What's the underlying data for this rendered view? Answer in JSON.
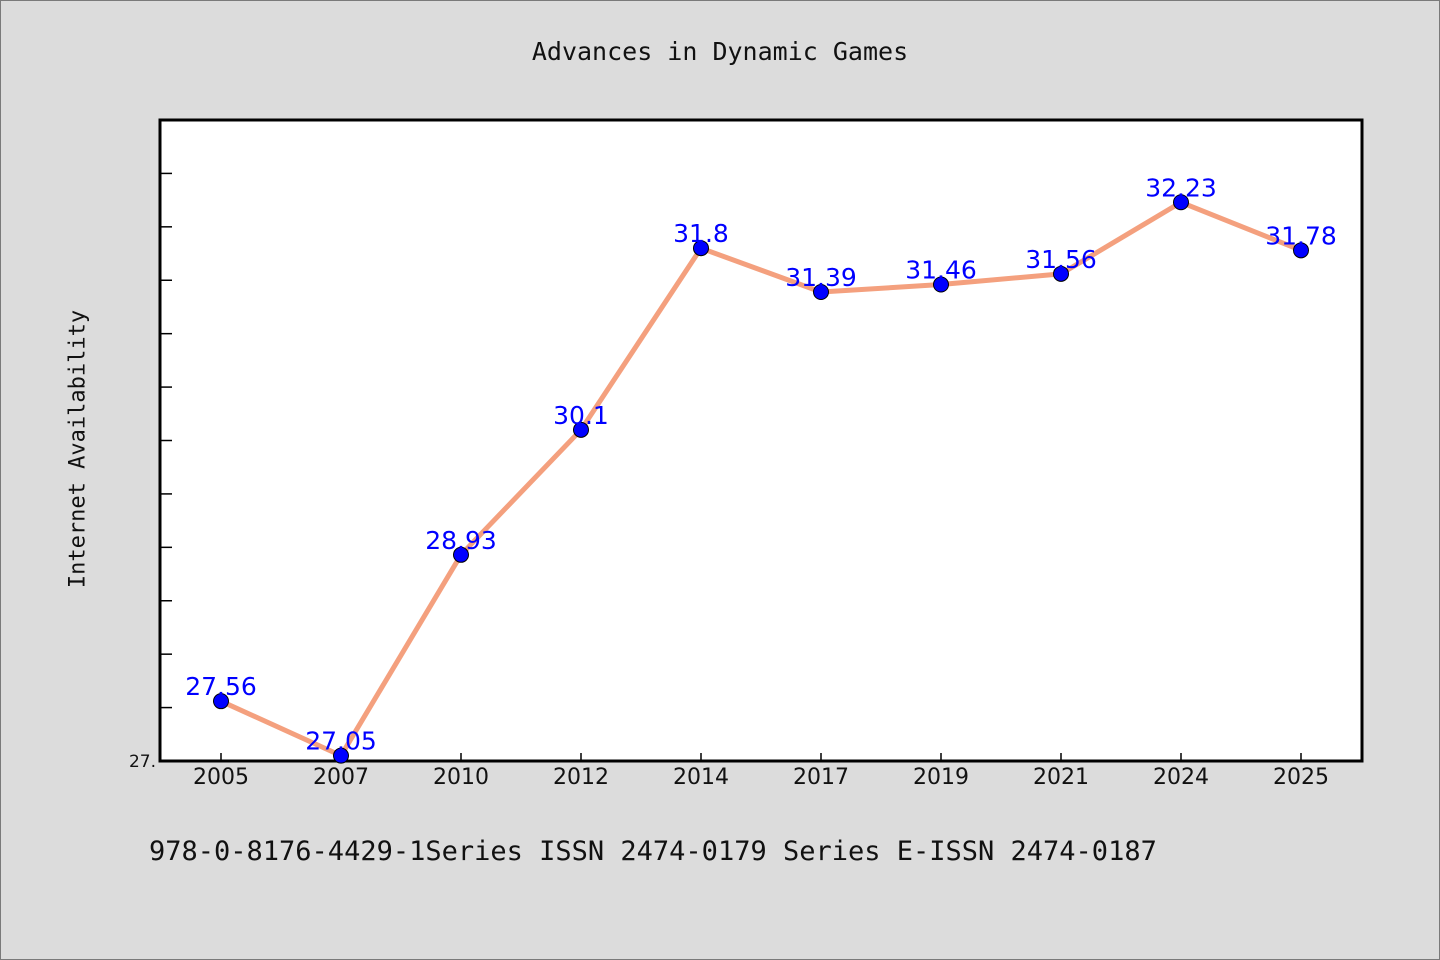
{
  "colors": {
    "line": "#f4a07e",
    "marker": "#0000ff",
    "data_label": "#0000ff",
    "plot_background": "#ffffff",
    "figure_background": "#dcdcdc"
  },
  "footer": "978-0-8176-4429-1Series ISSN 2474-0179 Series E-ISSN 2474-0187",
  "chart_data": {
    "type": "line",
    "title": "Advances in Dynamic Games",
    "xlabel": "",
    "ylabel": "Internet Availability",
    "categories": [
      "2005",
      "2007",
      "2010",
      "2012",
      "2014",
      "2017",
      "2019",
      "2021",
      "2024",
      "2025"
    ],
    "series": [
      {
        "values": [
          27.56,
          27.05,
          28.93,
          30.1,
          31.8,
          31.39,
          31.46,
          31.56,
          32.23,
          31.78
        ],
        "labels": [
          "27.56",
          "27.05",
          "28.93",
          "30.1",
          "31.8",
          "31.39",
          "31.46",
          "31.56",
          "32.23",
          "31.78"
        ]
      }
    ],
    "ylim": [
      27.0,
      33.0
    ],
    "y_tick_labels": [
      "27."
    ],
    "grid": false,
    "legend": "none"
  }
}
